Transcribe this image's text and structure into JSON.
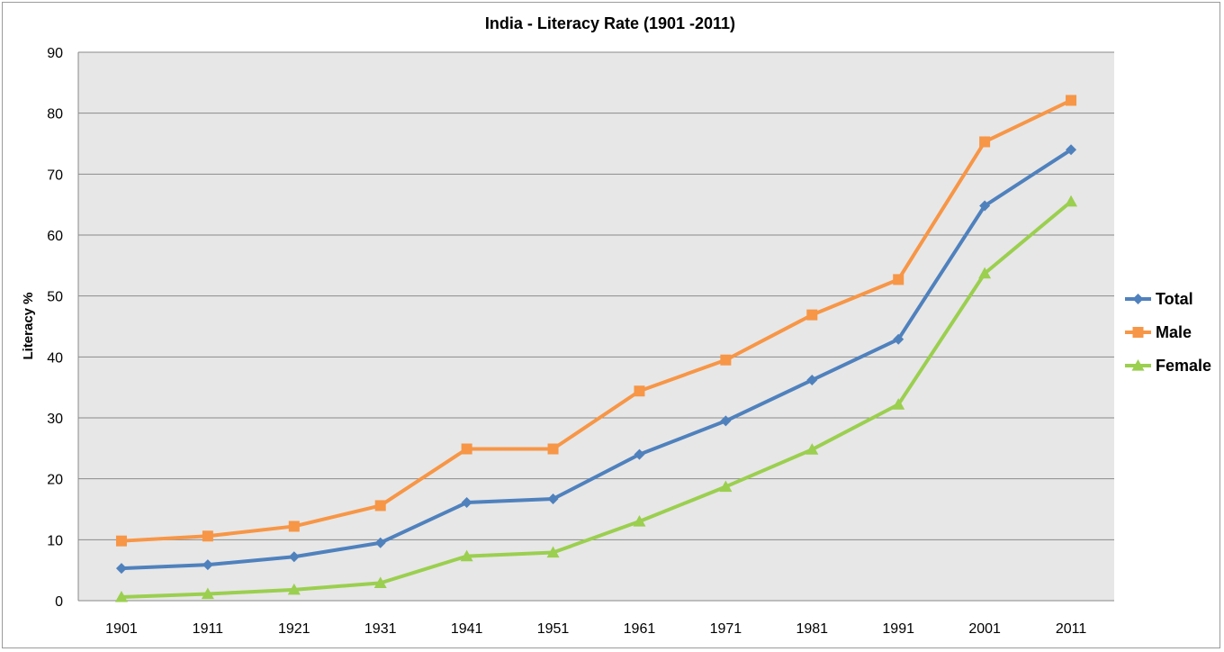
{
  "chart_data": {
    "type": "line",
    "title": "India - Literacy Rate (1901 -2011)",
    "xlabel": "",
    "ylabel": "Literacy %",
    "categories": [
      "1901",
      "1911",
      "1921",
      "1931",
      "1941",
      "1951",
      "1961",
      "1971",
      "1981",
      "1991",
      "2001",
      "2011"
    ],
    "ylim": [
      0,
      90
    ],
    "yticks": [
      0,
      10,
      20,
      30,
      40,
      50,
      60,
      70,
      80,
      90
    ],
    "grid": true,
    "legend_position": "right",
    "plot_background": "#e7e7e7",
    "series": [
      {
        "name": "Total",
        "color": "#4f81bd",
        "marker": "diamond",
        "values": [
          5.3,
          5.9,
          7.2,
          9.5,
          16.1,
          16.7,
          24.0,
          29.5,
          36.2,
          42.9,
          64.8,
          74.0
        ]
      },
      {
        "name": "Male",
        "color": "#f79646",
        "marker": "square",
        "values": [
          9.8,
          10.6,
          12.2,
          15.6,
          24.9,
          24.9,
          34.4,
          39.5,
          46.9,
          52.7,
          75.3,
          82.1
        ]
      },
      {
        "name": "Female",
        "color": "#9bcf4f",
        "marker": "triangle",
        "values": [
          0.6,
          1.1,
          1.8,
          2.9,
          7.3,
          7.9,
          13.0,
          18.7,
          24.8,
          32.2,
          53.7,
          65.5
        ]
      }
    ]
  }
}
